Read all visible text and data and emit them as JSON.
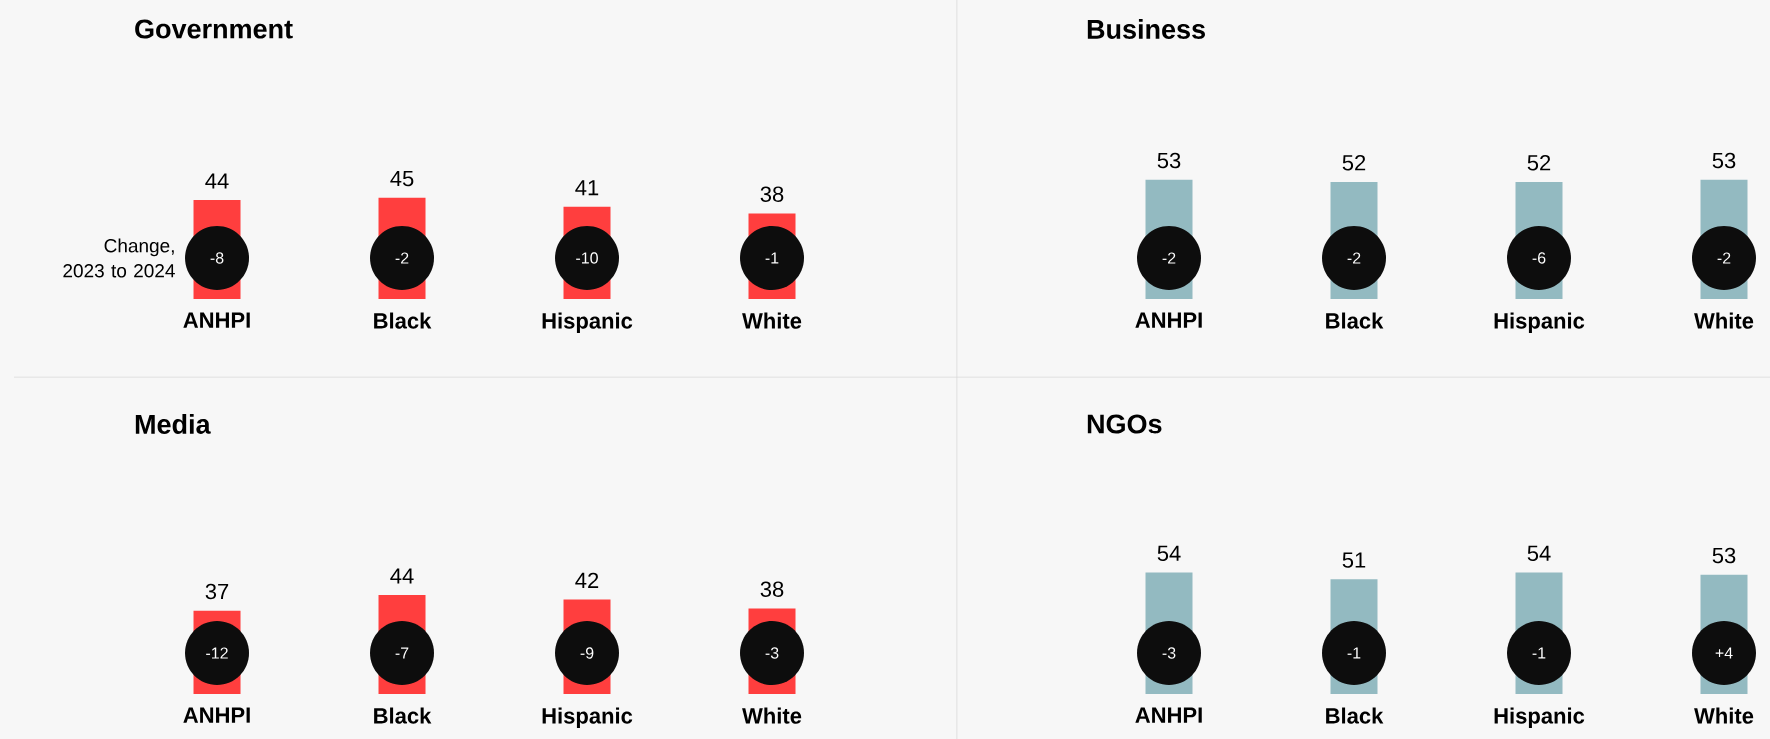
{
  "chart_data": [
    {
      "type": "bar",
      "title": "Government",
      "categories": [
        "ANHPI",
        "Black",
        "Hispanic",
        "White"
      ],
      "values": [
        44,
        45,
        41,
        38
      ],
      "color": "#ff3e3e",
      "data_labels": true,
      "annotations": [
        "-8",
        "-2",
        "-10",
        "-1",
        "Change, 2023 to 2024"
      ]
    },
    {
      "type": "bar",
      "title": "Business",
      "categories": [
        "ANHPI",
        "Black",
        "Hispanic",
        "White"
      ],
      "values": [
        53,
        52,
        52,
        53
      ],
      "color": "#93bac1",
      "data_labels": true,
      "annotations": [
        "-2",
        "-2",
        "-6",
        "-2"
      ]
    },
    {
      "type": "bar",
      "title": "Media",
      "categories": [
        "ANHPI",
        "Black",
        "Hispanic",
        "White"
      ],
      "values": [
        37,
        44,
        42,
        38
      ],
      "color": "#ff3e3e",
      "data_labels": true,
      "annotations": [
        "-12",
        "-7",
        "-9",
        "-3"
      ]
    },
    {
      "type": "bar",
      "title": "NGOs",
      "categories": [
        "ANHPI",
        "Black",
        "Hispanic",
        "White"
      ],
      "values": [
        54,
        51,
        54,
        53
      ],
      "color": "#93bac1",
      "data_labels": true,
      "annotations": [
        "-3",
        "-1",
        "-1",
        "+4"
      ]
    }
  ]
}
